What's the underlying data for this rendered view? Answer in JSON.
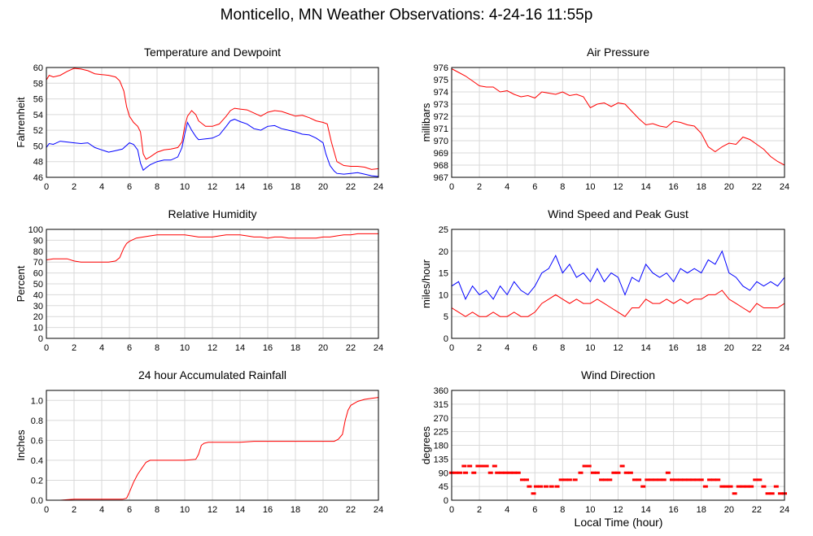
{
  "page": {
    "title": "Monticello, MN Weather Observations: 4-24-16 11:55p",
    "xlabel": "Local Time (hour)"
  },
  "colors": {
    "red": "#ff0000",
    "blue": "#0000ff",
    "grid": "#d9d9d9",
    "frame": "#000000"
  },
  "chart_data": [
    {
      "id": "temperature",
      "type": "line",
      "title": "Temperature and Dewpoint",
      "ylabel": "Fahrenheit",
      "xlim": [
        0,
        24
      ],
      "ylim": [
        46,
        60
      ],
      "xticks": [
        0,
        2,
        4,
        6,
        8,
        10,
        12,
        14,
        16,
        18,
        20,
        22,
        24
      ],
      "yticks": [
        46,
        48,
        50,
        52,
        54,
        56,
        58,
        60
      ],
      "grid": true,
      "series": [
        {
          "color": "#ff0000",
          "x": [
            0,
            0.2,
            0.5,
            1,
            1.5,
            2,
            2.5,
            3,
            3.5,
            4,
            4.5,
            5,
            5.3,
            5.6,
            5.8,
            6,
            6.3,
            6.6,
            6.8,
            7,
            7.2,
            7.5,
            8,
            8.5,
            9,
            9.5,
            9.8,
            10,
            10.2,
            10.5,
            10.8,
            11,
            11.5,
            12,
            12.5,
            13,
            13.3,
            13.6,
            14,
            14.5,
            15,
            15.5,
            16,
            16.5,
            17,
            17.5,
            18,
            18.5,
            19,
            19.5,
            20,
            20.3,
            20.6,
            21,
            21.5,
            22,
            22.5,
            23,
            23.5,
            24
          ],
          "y": [
            58.4,
            59.0,
            58.8,
            59.0,
            59.5,
            59.9,
            59.8,
            59.6,
            59.2,
            59.1,
            59.0,
            58.8,
            58.3,
            57.0,
            55.0,
            53.8,
            53.0,
            52.5,
            51.8,
            49.0,
            48.3,
            48.6,
            49.2,
            49.5,
            49.6,
            49.8,
            50.5,
            52.5,
            53.8,
            54.5,
            54.0,
            53.2,
            52.5,
            52.5,
            52.8,
            53.8,
            54.5,
            54.8,
            54.7,
            54.6,
            54.2,
            53.8,
            54.3,
            54.5,
            54.4,
            54.1,
            53.8,
            53.9,
            53.6,
            53.2,
            53.0,
            52.8,
            50.5,
            48.0,
            47.5,
            47.4,
            47.4,
            47.3,
            47.0,
            47.1
          ]
        },
        {
          "color": "#0000ff",
          "x": [
            0,
            0.2,
            0.5,
            1,
            1.5,
            2,
            2.5,
            3,
            3.5,
            4,
            4.5,
            5,
            5.5,
            6,
            6.3,
            6.6,
            6.8,
            7,
            7.2,
            7.5,
            8,
            8.5,
            9,
            9.5,
            9.8,
            10,
            10.2,
            10.5,
            10.8,
            11,
            11.5,
            12,
            12.5,
            13,
            13.3,
            13.6,
            14,
            14.5,
            15,
            15.5,
            16,
            16.5,
            17,
            17.5,
            18,
            18.5,
            19,
            19.5,
            20,
            20.2,
            20.5,
            20.8,
            21,
            21.5,
            22,
            22.5,
            23,
            23.5,
            24
          ],
          "y": [
            49.8,
            50.3,
            50.2,
            50.6,
            50.5,
            50.4,
            50.3,
            50.4,
            49.8,
            49.5,
            49.2,
            49.4,
            49.6,
            50.4,
            50.2,
            49.5,
            47.8,
            46.9,
            47.2,
            47.6,
            48.0,
            48.2,
            48.2,
            48.6,
            49.8,
            51.5,
            53.0,
            52.0,
            51.2,
            50.8,
            50.9,
            51.0,
            51.4,
            52.5,
            53.2,
            53.4,
            53.1,
            52.8,
            52.2,
            52.0,
            52.5,
            52.6,
            52.2,
            52.0,
            51.8,
            51.5,
            51.4,
            51.0,
            50.4,
            49.0,
            47.5,
            46.8,
            46.5,
            46.4,
            46.5,
            46.6,
            46.4,
            46.2,
            46.1
          ]
        }
      ]
    },
    {
      "id": "pressure",
      "type": "line",
      "title": "Air Pressure",
      "ylabel": "millibars",
      "xlim": [
        0,
        24
      ],
      "ylim": [
        967,
        976
      ],
      "xticks": [
        0,
        2,
        4,
        6,
        8,
        10,
        12,
        14,
        16,
        18,
        20,
        22,
        24
      ],
      "yticks": [
        967,
        968,
        969,
        970,
        971,
        972,
        973,
        974,
        975,
        976
      ],
      "grid": true,
      "series": [
        {
          "color": "#ff0000",
          "x": [
            0,
            0.5,
            1,
            1.5,
            2,
            2.5,
            3,
            3.5,
            4,
            4.5,
            5,
            5.5,
            6,
            6.5,
            7,
            7.5,
            8,
            8.5,
            9,
            9.5,
            10,
            10.5,
            11,
            11.5,
            12,
            12.5,
            13,
            13.5,
            14,
            14.5,
            15,
            15.5,
            16,
            16.5,
            17,
            17.5,
            18,
            18.5,
            19,
            19.5,
            20,
            20.5,
            21,
            21.5,
            22,
            22.5,
            23,
            23.5,
            24
          ],
          "y": [
            975.9,
            975.6,
            975.3,
            974.9,
            974.5,
            974.4,
            974.4,
            974.0,
            974.1,
            973.8,
            973.6,
            973.7,
            973.5,
            974.0,
            973.9,
            973.8,
            974.0,
            973.7,
            973.8,
            973.6,
            972.7,
            973.0,
            973.1,
            972.8,
            973.1,
            973.0,
            972.4,
            971.8,
            971.3,
            971.4,
            971.2,
            971.1,
            971.6,
            971.5,
            971.3,
            971.2,
            970.6,
            969.5,
            969.1,
            969.5,
            969.8,
            969.7,
            970.3,
            970.1,
            969.7,
            969.3,
            968.7,
            968.3,
            968.0
          ]
        }
      ]
    },
    {
      "id": "humidity",
      "type": "line",
      "title": "Relative Humidity",
      "ylabel": "Percent",
      "xlim": [
        0,
        24
      ],
      "ylim": [
        0,
        100
      ],
      "xticks": [
        0,
        2,
        4,
        6,
        8,
        10,
        12,
        14,
        16,
        18,
        20,
        22,
        24
      ],
      "yticks": [
        0,
        10,
        20,
        30,
        40,
        50,
        60,
        70,
        80,
        90,
        100
      ],
      "grid": true,
      "series": [
        {
          "color": "#ff0000",
          "x": [
            0,
            0.5,
            1,
            1.5,
            2,
            2.5,
            3,
            3.5,
            4,
            4.5,
            5,
            5.3,
            5.6,
            5.8,
            6,
            6.5,
            7,
            7.5,
            8,
            8.5,
            9,
            9.5,
            10,
            10.5,
            11,
            11.5,
            12,
            12.5,
            13,
            13.5,
            14,
            14.5,
            15,
            15.5,
            16,
            16.5,
            17,
            17.5,
            18,
            18.5,
            19,
            19.5,
            20,
            20.5,
            21,
            21.5,
            22,
            22.5,
            23,
            23.5,
            24
          ],
          "y": [
            72,
            73,
            73,
            73,
            71,
            70,
            70,
            70,
            70,
            70,
            71,
            74,
            83,
            87,
            89,
            92,
            93,
            94,
            95,
            95,
            95,
            95,
            95,
            94,
            93,
            93,
            93,
            94,
            95,
            95,
            95,
            94,
            93,
            93,
            92,
            93,
            93,
            92,
            92,
            92,
            92,
            92,
            93,
            93,
            94,
            95,
            95,
            96,
            96,
            96,
            96
          ]
        }
      ]
    },
    {
      "id": "wind",
      "type": "line",
      "title": "Wind Speed and Peak Gust",
      "ylabel": "miles/hour",
      "xlim": [
        0,
        24
      ],
      "ylim": [
        0,
        25
      ],
      "xticks": [
        0,
        2,
        4,
        6,
        8,
        10,
        12,
        14,
        16,
        18,
        20,
        22,
        24
      ],
      "yticks": [
        0,
        5,
        10,
        15,
        20,
        25
      ],
      "grid": true,
      "series": [
        {
          "color": "#0000ff",
          "x": [
            0,
            0.5,
            1,
            1.5,
            2,
            2.5,
            3,
            3.5,
            4,
            4.5,
            5,
            5.5,
            6,
            6.5,
            7,
            7.5,
            8,
            8.5,
            9,
            9.5,
            10,
            10.5,
            11,
            11.5,
            12,
            12.5,
            13,
            13.5,
            14,
            14.5,
            15,
            15.5,
            16,
            16.5,
            17,
            17.5,
            18,
            18.5,
            19,
            19.5,
            20,
            20.5,
            21,
            21.5,
            22,
            22.5,
            23,
            23.5,
            24
          ],
          "y": [
            12,
            13,
            9,
            12,
            10,
            11,
            9,
            12,
            10,
            13,
            11,
            10,
            12,
            15,
            16,
            19,
            15,
            17,
            14,
            15,
            13,
            16,
            13,
            15,
            14,
            10,
            14,
            13,
            17,
            15,
            14,
            15,
            13,
            16,
            15,
            16,
            15,
            18,
            17,
            20,
            15,
            14,
            12,
            11,
            13,
            12,
            13,
            12,
            14
          ]
        },
        {
          "color": "#ff0000",
          "x": [
            0,
            0.5,
            1,
            1.5,
            2,
            2.5,
            3,
            3.5,
            4,
            4.5,
            5,
            5.5,
            6,
            6.5,
            7,
            7.5,
            8,
            8.5,
            9,
            9.5,
            10,
            10.5,
            11,
            11.5,
            12,
            12.5,
            13,
            13.5,
            14,
            14.5,
            15,
            15.5,
            16,
            16.5,
            17,
            17.5,
            18,
            18.5,
            19,
            19.5,
            20,
            20.5,
            21,
            21.5,
            22,
            22.5,
            23,
            23.5,
            24
          ],
          "y": [
            7,
            6,
            5,
            6,
            5,
            5,
            6,
            5,
            5,
            6,
            5,
            5,
            6,
            8,
            9,
            10,
            9,
            8,
            9,
            8,
            8,
            9,
            8,
            7,
            6,
            5,
            7,
            7,
            9,
            8,
            8,
            9,
            8,
            9,
            8,
            9,
            9,
            10,
            10,
            11,
            9,
            8,
            7,
            6,
            8,
            7,
            7,
            7,
            8
          ]
        }
      ]
    },
    {
      "id": "rainfall",
      "type": "line",
      "title": "24 hour Accumulated Rainfall",
      "ylabel": "Inches",
      "xlim": [
        0,
        24
      ],
      "ylim": [
        0,
        1.1
      ],
      "xticks": [
        0,
        2,
        4,
        6,
        8,
        10,
        12,
        14,
        16,
        18,
        20,
        22,
        24
      ],
      "yticks": [
        0.0,
        0.2,
        0.4,
        0.6,
        0.8,
        1.0
      ],
      "ytick_labels": [
        "0.0",
        "0.2",
        "0.4",
        "0.6",
        "0.8",
        "1.0"
      ],
      "grid": true,
      "series": [
        {
          "color": "#ff0000",
          "x": [
            0,
            1,
            2,
            3,
            4,
            5,
            5.5,
            5.8,
            6.0,
            6.3,
            6.6,
            6.9,
            7.2,
            7.5,
            8,
            9,
            10,
            10.8,
            11.0,
            11.2,
            11.4,
            11.7,
            12,
            13,
            14,
            15,
            16,
            17,
            18,
            19,
            20,
            20.8,
            21.1,
            21.4,
            21.6,
            21.8,
            22.0,
            22.5,
            23,
            23.5,
            24
          ],
          "y": [
            0,
            0,
            0.01,
            0.01,
            0.01,
            0.01,
            0.01,
            0.02,
            0.08,
            0.18,
            0.26,
            0.32,
            0.38,
            0.4,
            0.4,
            0.4,
            0.4,
            0.41,
            0.46,
            0.55,
            0.57,
            0.58,
            0.58,
            0.58,
            0.58,
            0.59,
            0.59,
            0.59,
            0.59,
            0.59,
            0.59,
            0.59,
            0.61,
            0.66,
            0.8,
            0.9,
            0.95,
            0.99,
            1.01,
            1.02,
            1.03
          ]
        }
      ]
    },
    {
      "id": "direction",
      "type": "scatter",
      "title": "Wind Direction",
      "ylabel": "degrees",
      "xlim": [
        0,
        24
      ],
      "ylim": [
        0,
        360
      ],
      "xticks": [
        0,
        2,
        4,
        6,
        8,
        10,
        12,
        14,
        16,
        18,
        20,
        22,
        24
      ],
      "yticks": [
        0,
        45,
        90,
        135,
        180,
        225,
        270,
        315,
        360
      ],
      "grid": true,
      "series": [
        {
          "color": "#ff0000",
          "x": [
            0.0,
            0.3,
            0.6,
            0.9,
            1.0,
            1.3,
            1.6,
            1.9,
            2.2,
            2.5,
            2.8,
            3.1,
            3.3,
            3.6,
            3.9,
            4.2,
            4.5,
            4.8,
            5.1,
            5.4,
            5.6,
            5.9,
            6.1,
            6.4,
            6.8,
            7.2,
            7.6,
            7.9,
            8.2,
            8.5,
            8.9,
            9.3,
            9.6,
            9.9,
            10.2,
            10.5,
            10.8,
            11.1,
            11.4,
            11.7,
            12.0,
            12.3,
            12.6,
            12.9,
            13.2,
            13.5,
            13.8,
            14.1,
            14.4,
            14.7,
            15.0,
            15.3,
            15.6,
            15.9,
            16.2,
            16.5,
            16.8,
            17.1,
            17.4,
            17.7,
            18.0,
            18.3,
            18.6,
            18.9,
            19.2,
            19.5,
            19.8,
            20.1,
            20.4,
            20.7,
            21.0,
            21.3,
            21.6,
            21.9,
            22.2,
            22.5,
            22.8,
            23.1,
            23.4,
            23.7,
            24.0
          ],
          "y": [
            90,
            90,
            90,
            112,
            90,
            112,
            90,
            112,
            112,
            112,
            90,
            112,
            90,
            90,
            90,
            90,
            90,
            90,
            67,
            67,
            45,
            22,
            45,
            45,
            45,
            45,
            45,
            67,
            67,
            67,
            67,
            90,
            112,
            112,
            90,
            90,
            67,
            67,
            67,
            90,
            90,
            112,
            90,
            90,
            67,
            67,
            45,
            67,
            67,
            67,
            67,
            67,
            90,
            67,
            67,
            67,
            67,
            67,
            67,
            67,
            67,
            45,
            67,
            67,
            67,
            45,
            45,
            45,
            22,
            45,
            45,
            45,
            45,
            67,
            67,
            45,
            22,
            22,
            45,
            22,
            22
          ]
        }
      ]
    }
  ]
}
